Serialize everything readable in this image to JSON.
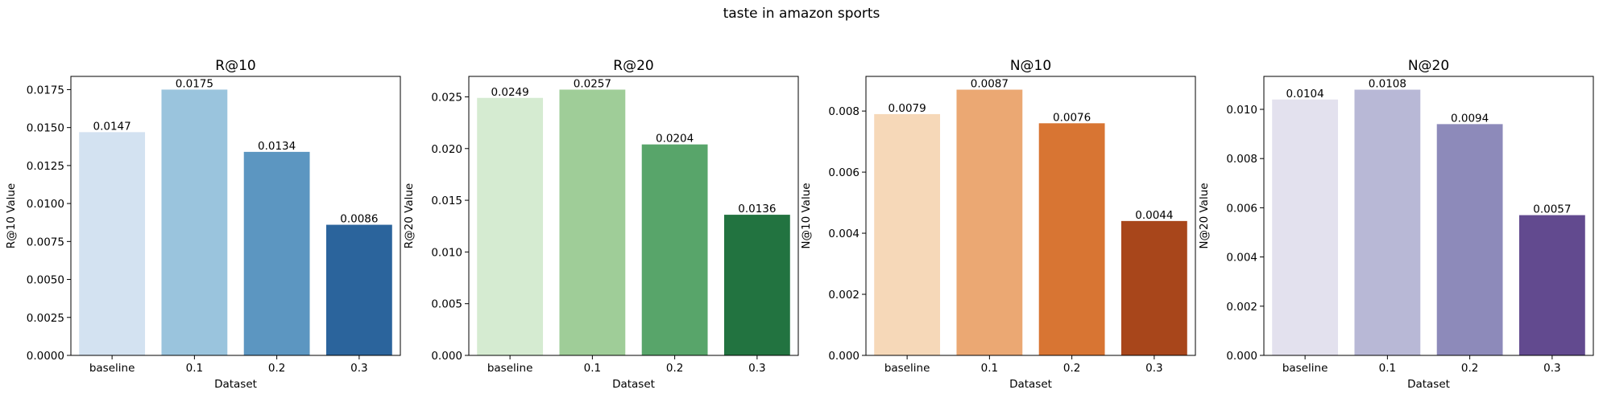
{
  "figure": {
    "title": "taste in amazon sports"
  },
  "chart_data": [
    {
      "type": "bar",
      "title": "R@10",
      "xlabel": "Dataset",
      "ylabel": "R@10 Value",
      "categories": [
        "baseline",
        "0.1",
        "0.2",
        "0.3"
      ],
      "values": [
        0.0147,
        0.0175,
        0.0134,
        0.0086
      ],
      "data_labels": [
        "0.0147",
        "0.0175",
        "0.0134",
        "0.0086"
      ],
      "ylim": [
        0,
        0.01837
      ],
      "yticks": [
        0,
        0.0025,
        0.005,
        0.0075,
        0.01,
        0.0125,
        0.015,
        0.0175
      ],
      "ytick_labels": [
        "0.0000",
        "0.0025",
        "0.0050",
        "0.0075",
        "0.0100",
        "0.0125",
        "0.0150",
        "0.0175"
      ],
      "colors": [
        "#d3e2f1",
        "#9ac4dd",
        "#5c96c1",
        "#2b649c"
      ],
      "grid": false,
      "legend": "none"
    },
    {
      "type": "bar",
      "title": "R@20",
      "xlabel": "Dataset",
      "ylabel": "R@20 Value",
      "categories": [
        "baseline",
        "0.1",
        "0.2",
        "0.3"
      ],
      "values": [
        0.0249,
        0.0257,
        0.0204,
        0.0136
      ],
      "data_labels": [
        "0.0249",
        "0.0257",
        "0.0204",
        "0.0136"
      ],
      "ylim": [
        0,
        0.02698
      ],
      "yticks": [
        0,
        0.005,
        0.01,
        0.015,
        0.02,
        0.025
      ],
      "ytick_labels": [
        "0.000",
        "0.005",
        "0.010",
        "0.015",
        "0.020",
        "0.025"
      ],
      "colors": [
        "#d5ebd1",
        "#9fcd98",
        "#58a56a",
        "#227340"
      ],
      "grid": false,
      "legend": "none"
    },
    {
      "type": "bar",
      "title": "N@10",
      "xlabel": "Dataset",
      "ylabel": "N@10 Value",
      "categories": [
        "baseline",
        "0.1",
        "0.2",
        "0.3"
      ],
      "values": [
        0.0079,
        0.0087,
        0.0076,
        0.0044
      ],
      "data_labels": [
        "0.0079",
        "0.0087",
        "0.0076",
        "0.0044"
      ],
      "ylim": [
        0,
        0.009135
      ],
      "yticks": [
        0,
        0.002,
        0.004,
        0.006,
        0.008
      ],
      "ytick_labels": [
        "0.000",
        "0.002",
        "0.004",
        "0.006",
        "0.008"
      ],
      "colors": [
        "#f6d8b8",
        "#eba873",
        "#d87533",
        "#a8461b"
      ],
      "grid": false,
      "legend": "none"
    },
    {
      "type": "bar",
      "title": "N@20",
      "xlabel": "Dataset",
      "ylabel": "N@20 Value",
      "categories": [
        "baseline",
        "0.1",
        "0.2",
        "0.3"
      ],
      "values": [
        0.0104,
        0.0108,
        0.0094,
        0.0057
      ],
      "data_labels": [
        "0.0104",
        "0.0108",
        "0.0094",
        "0.0057"
      ],
      "ylim": [
        0,
        0.01134
      ],
      "yticks": [
        0,
        0.002,
        0.004,
        0.006,
        0.008,
        0.01
      ],
      "ytick_labels": [
        "0.000",
        "0.002",
        "0.004",
        "0.006",
        "0.008",
        "0.010"
      ],
      "colors": [
        "#e3e1ee",
        "#b8b8d6",
        "#8d8aba",
        "#624a8f"
      ],
      "grid": false,
      "legend": "none"
    }
  ]
}
